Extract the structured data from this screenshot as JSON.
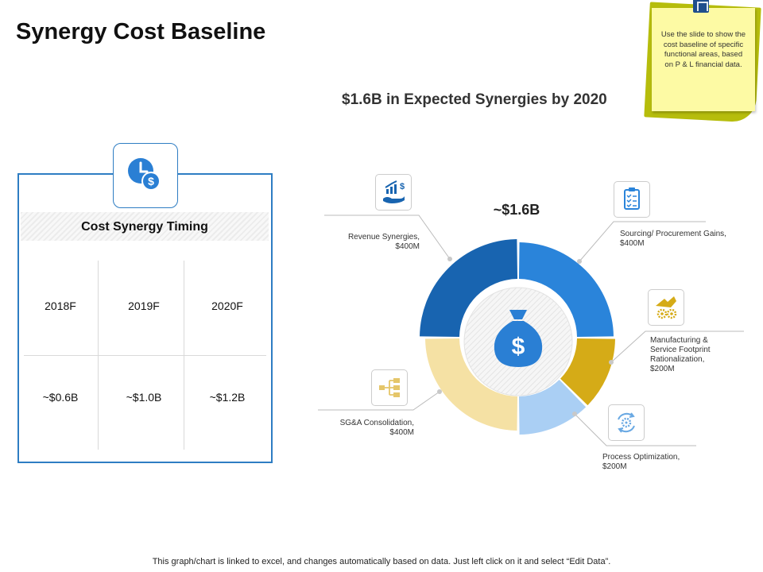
{
  "page": {
    "title": "Synergy Cost Baseline",
    "subtitle": "$1.6B in Expected Synergies by 2020",
    "footer": "This graph/chart is linked to excel,  and changes automatically based on data. Just left click on it and select “Edit Data”."
  },
  "note": {
    "text": "Use the slide to show the cost baseline of specific functional areas, based on P & L financial data."
  },
  "timing": {
    "header": "Cost Synergy Timing",
    "years": [
      "2018F",
      "2019F",
      "2020F"
    ],
    "values": [
      "~$0.6B",
      "~$1.0B",
      "~$1.2B"
    ]
  },
  "chart_data": {
    "type": "pie",
    "variant": "donut",
    "total_label": "~$1.6B",
    "unit": "$M",
    "segments": [
      {
        "name": "Sourcing/ Procurement Gains",
        "value": 400,
        "value_label": "$400M",
        "color": "#2a84da",
        "icon": "clipboard-checklist-icon"
      },
      {
        "name": "Manufacturing & Service Footprint Rationalization",
        "value": 200,
        "value_label": "$200M",
        "color": "#d5ab17",
        "icon": "factory-gear-icon"
      },
      {
        "name": "Process Optimization",
        "value": 200,
        "value_label": "$200M",
        "color": "#aacff4",
        "icon": "process-cycle-icon"
      },
      {
        "name": "SG&A Consolidation",
        "value": 400,
        "value_label": "$400M",
        "color": "#f5e1a4",
        "icon": "org-chart-icon"
      },
      {
        "name": "Revenue Synergies",
        "value": 400,
        "value_label": "$400M",
        "color": "#1864b0",
        "icon": "hand-growth-dollar-icon"
      }
    ],
    "colors": {
      "accent": "#2e7dc3",
      "center_icon": "#2a7fd4",
      "leader": "#bbbbbb"
    }
  }
}
